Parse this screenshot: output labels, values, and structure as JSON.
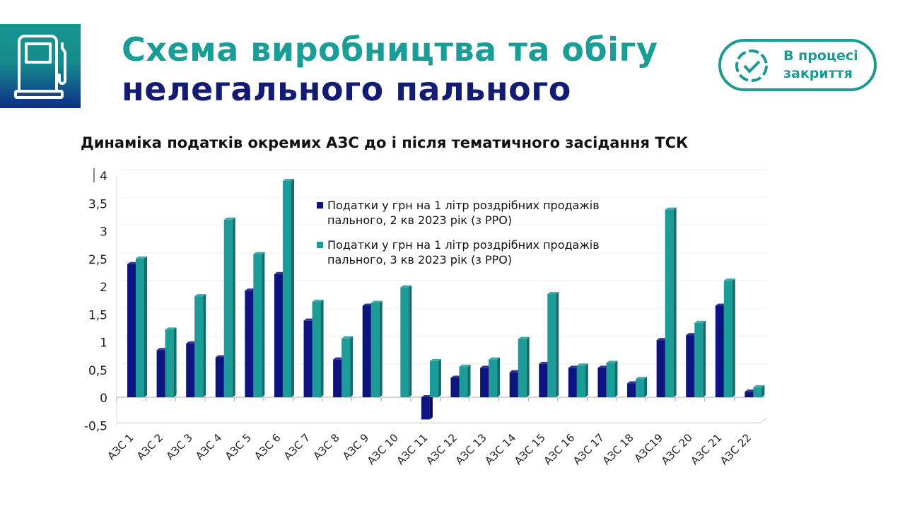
{
  "header": {
    "title_line1": "Схема виробництва та обігу",
    "title_line2": "нелегального пального",
    "icon": "fuel-pump-icon"
  },
  "badge": {
    "line1": "В процесі",
    "line2": "закриття",
    "icon": "check-circle-icon"
  },
  "colors": {
    "teal": "#1a9d96",
    "navy": "#141b72",
    "series1": "#0d137f",
    "series2": "#1c9c98"
  },
  "chart_data": {
    "type": "bar",
    "title": "Динаміка податків окремих АЗС до і після тематичного засідання ТСК",
    "xlabel": "",
    "ylabel": "",
    "ylim": [
      -0.5,
      4
    ],
    "yticks": [
      "-0,5",
      "0",
      "0,5",
      "1",
      "1,5",
      "2",
      "2,5",
      "3",
      "3,5",
      "4"
    ],
    "legend_position": "top-center",
    "categories": [
      "АЗС 1",
      "АЗС 2",
      "АЗС 3",
      "АЗС 4",
      "АЗС 5",
      "АЗС 6",
      "АЗС 7",
      "АЗС 8",
      "АЗС 9",
      "АЗС 10",
      "АЗС 11",
      "АЗС 12",
      "АЗС 13",
      "АЗС 14",
      "АЗС 15",
      "АЗС 16",
      "АЗС 17",
      "АЗС 18",
      "АЗС19",
      "АЗС 20",
      "АЗС 21",
      "АЗС 22"
    ],
    "series": [
      {
        "name": "Податки у грн на 1 літр роздрібних продажів пального, 2 кв 2023 рік (з РРО)",
        "values": [
          2.4,
          0.85,
          0.97,
          0.72,
          1.92,
          2.22,
          1.38,
          0.68,
          1.65,
          0,
          -0.4,
          0.35,
          0.53,
          0.45,
          0.6,
          0.53,
          0.53,
          0.25,
          1.03,
          1.12,
          1.65,
          0.1
        ]
      },
      {
        "name": "Податки у грн на 1 літр роздрібних продажів пального, 3 кв 2023 рік (з РРО)",
        "values": [
          2.5,
          1.22,
          1.82,
          3.2,
          2.58,
          3.9,
          1.72,
          1.06,
          1.7,
          1.98,
          0.65,
          0.55,
          0.68,
          1.05,
          1.86,
          0.57,
          0.62,
          0.33,
          3.38,
          1.34,
          2.1,
          0.18
        ]
      }
    ],
    "legend_lines": [
      [
        "Податки у грн на 1 літр роздрібних продажів",
        "пального, 2 кв 2023 рік (з РРО)"
      ],
      [
        "Податки у грн на 1 літр роздрібних продажів",
        "пального, 3 кв 2023 рік (з РРО)"
      ]
    ]
  }
}
